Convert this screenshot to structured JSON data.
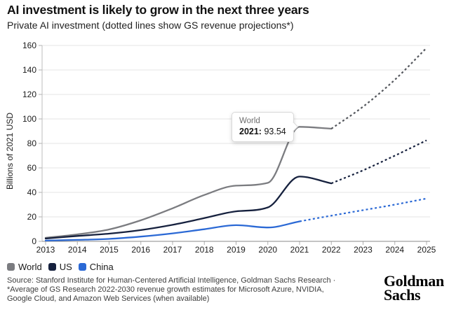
{
  "chart_data": {
    "type": "line",
    "title": "AI investment is likely to grow in the next three years",
    "subtitle": "Private AI investment (dotted lines show GS revenue projections*)",
    "ylabel": "Billions of 2021 USD",
    "xlabel": "",
    "ylim": [
      0,
      160
    ],
    "y_ticks": [
      0,
      20,
      40,
      60,
      80,
      100,
      120,
      140,
      160
    ],
    "x": [
      2013,
      2014,
      2015,
      2016,
      2017,
      2018,
      2019,
      2020,
      2021,
      2022,
      2023,
      2024,
      2025
    ],
    "grid": "horizontal",
    "legend_position": "bottom-left",
    "series": [
      {
        "name": "World",
        "color": "#7b7c80",
        "dash_color": "#54575d",
        "solid_until": 2022,
        "values": [
          2.9,
          5.7,
          9.7,
          17.2,
          27.0,
          37.9,
          45.5,
          47.8,
          93.54,
          92.0,
          110,
          132,
          158
        ]
      },
      {
        "name": "US",
        "color": "#16213e",
        "dash_color": "#16213e",
        "solid_until": 2022,
        "values": [
          2.3,
          4.4,
          6.3,
          9.2,
          13.5,
          19.0,
          24.5,
          27.7,
          52.9,
          47.4,
          58,
          70,
          82.5
        ]
      },
      {
        "name": "China",
        "color": "#2b69d5",
        "dash_color": "#2b69d5",
        "solid_until": 2021,
        "values": [
          0.6,
          1.2,
          2.0,
          3.9,
          6.5,
          9.9,
          13.2,
          11.3,
          16.3,
          21,
          25.5,
          30,
          35
        ]
      }
    ],
    "annotation": {
      "series": "World",
      "year_label": "2021:",
      "value_label": "93.54",
      "x": 2021,
      "y": 93.54
    }
  },
  "colors": {
    "grid": "#e4e4e4",
    "y_axis_line": "#bdbdbd",
    "x_axis_line": "#8a8a8a",
    "tick": "#b0b0b0"
  },
  "footer": {
    "lines": [
      "Source: Stanford Institute for Human-Centered Artificial Intelligence, Goldman Sachs Research ·",
      "*Average of GS Research 2022-2030 revenue growth estimates for Microsoft Azure, NVIDIA,",
      "Google Cloud, and Amazon Web Services (when available)"
    ],
    "logo_line1": "Goldman",
    "logo_line2": "Sachs"
  }
}
